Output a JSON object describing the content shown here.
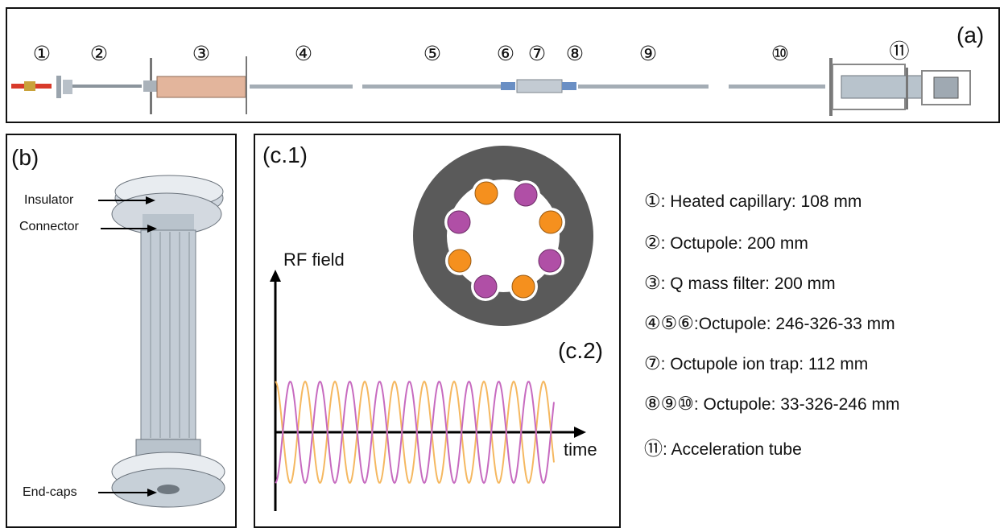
{
  "panel_a": {
    "label": "(a)",
    "markers": [
      "①",
      "②",
      "③",
      "④",
      "⑤",
      "⑥",
      "⑦",
      "⑧",
      "⑨",
      "⑩",
      "⑪"
    ]
  },
  "panel_b": {
    "label": "(b)",
    "annotations": {
      "insulator": "Insulator",
      "connector": "Connector",
      "endcaps": "End-caps"
    }
  },
  "panel_c": {
    "label_c1": "(c.1)",
    "label_c2": "(c.2)",
    "ylabel": "RF field",
    "xlabel": "time",
    "colors": {
      "orange": "#f5901e",
      "purple": "#b04fa6",
      "orange_wave": "#f5b860",
      "purple_wave": "#c76bc0",
      "electrode_bg": "#5a5a5a"
    }
  },
  "legend": [
    {
      "key": "①",
      "text": ": Heated capillary: 108 mm"
    },
    {
      "key": "②",
      "text": ": Octupole: 200 mm"
    },
    {
      "key": "③",
      "text": ": Q mass filter: 200 mm"
    },
    {
      "key": "④⑤⑥",
      "text": ":Octupole: 246-326-33 mm"
    },
    {
      "key": "⑦",
      "text": ": Octupole ion trap: 112 mm"
    },
    {
      "key": "⑧⑨⑩",
      "text": ": Octupole: 33-326-246 mm"
    },
    {
      "key": "⑪",
      "text": ": Acceleration tube"
    }
  ]
}
